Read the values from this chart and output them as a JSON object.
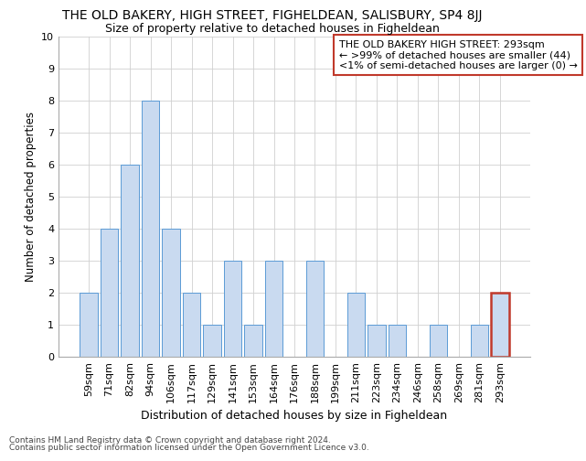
{
  "title": "THE OLD BAKERY, HIGH STREET, FIGHELDEAN, SALISBURY, SP4 8JJ",
  "subtitle": "Size of property relative to detached houses in Figheldean",
  "xlabel": "Distribution of detached houses by size in Figheldean",
  "ylabel": "Number of detached properties",
  "categories": [
    "59sqm",
    "71sqm",
    "82sqm",
    "94sqm",
    "106sqm",
    "117sqm",
    "129sqm",
    "141sqm",
    "153sqm",
    "164sqm",
    "176sqm",
    "188sqm",
    "199sqm",
    "211sqm",
    "223sqm",
    "234sqm",
    "246sqm",
    "258sqm",
    "269sqm",
    "281sqm",
    "293sqm"
  ],
  "values": [
    2,
    4,
    6,
    8,
    4,
    2,
    1,
    3,
    1,
    3,
    0,
    3,
    0,
    2,
    1,
    1,
    0,
    1,
    0,
    1,
    2
  ],
  "bar_color": "#c9daf0",
  "bar_edge_color": "#5b9bd5",
  "highlight_bar_index": 20,
  "highlight_bar_edge_color": "#c0392b",
  "annotation_box_text_line1": "THE OLD BAKERY HIGH STREET: 293sqm",
  "annotation_box_text_line2": "← >99% of detached houses are smaller (44)",
  "annotation_box_text_line3": "<1% of semi-detached houses are larger (0) →",
  "annotation_box_edge_color": "#c0392b",
  "ylim": [
    0,
    10
  ],
  "yticks": [
    0,
    1,
    2,
    3,
    4,
    5,
    6,
    7,
    8,
    9,
    10
  ],
  "grid_color": "#d0d0d0",
  "background_color": "#ffffff",
  "footnote1": "Contains HM Land Registry data © Crown copyright and database right 2024.",
  "footnote2": "Contains public sector information licensed under the Open Government Licence v3.0.",
  "title_fontsize": 10,
  "subtitle_fontsize": 9,
  "xlabel_fontsize": 9,
  "ylabel_fontsize": 8.5,
  "tick_fontsize": 8,
  "annotation_fontsize": 8,
  "footnote_fontsize": 6.5
}
